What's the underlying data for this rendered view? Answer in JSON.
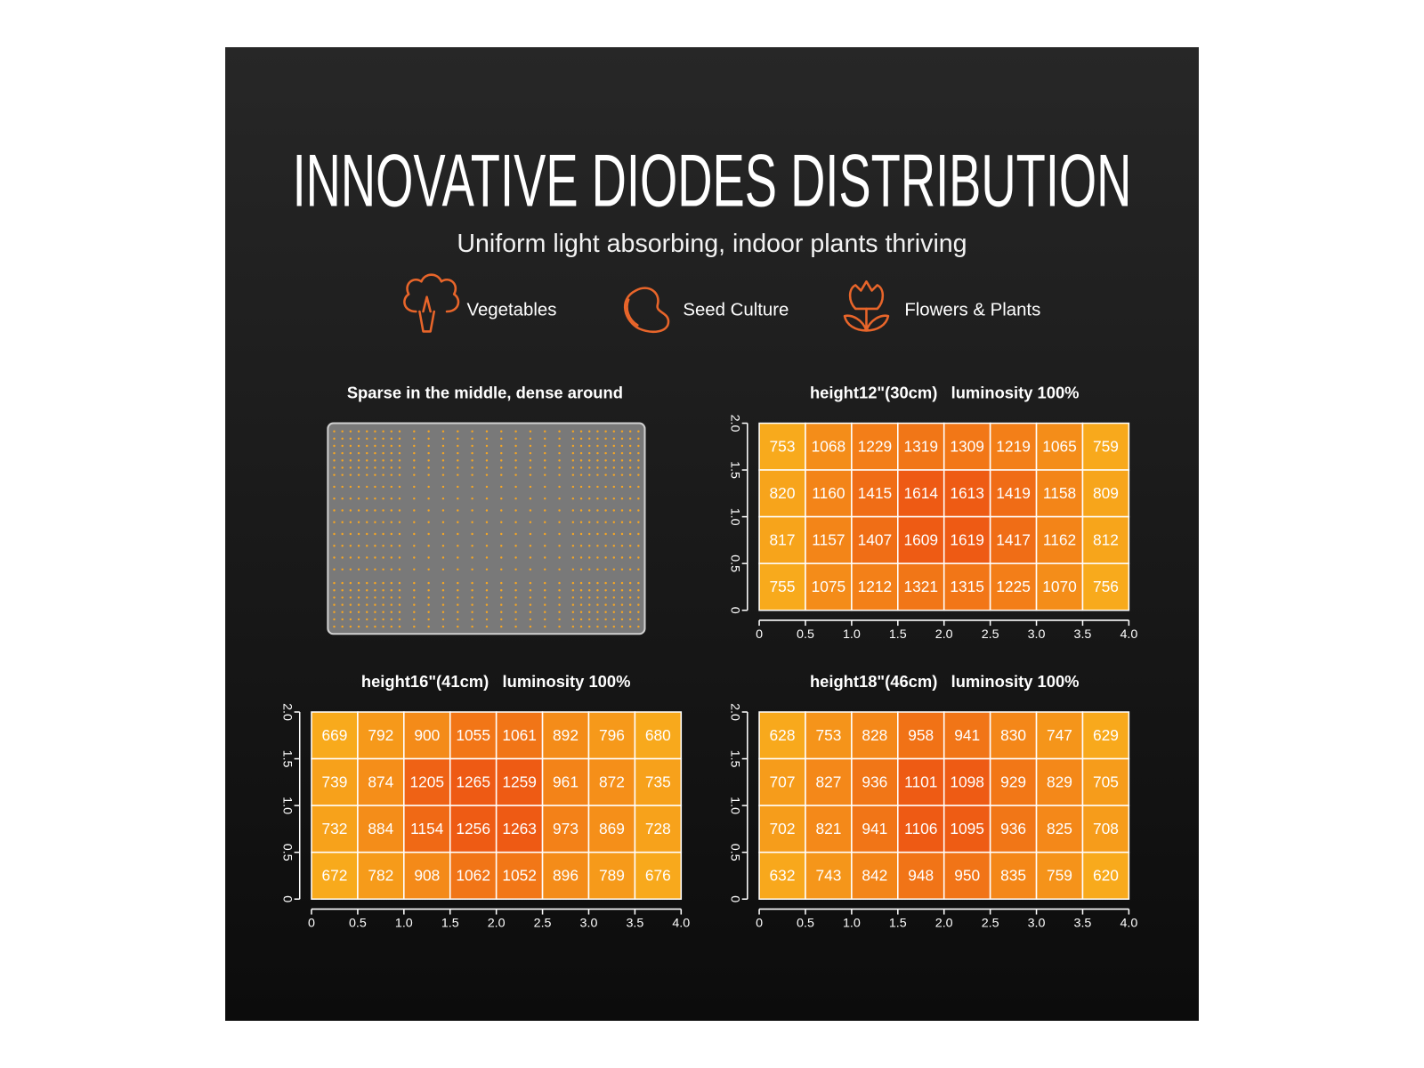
{
  "header": {
    "title": "INNOVATIVE DIODES DISTRIBUTION",
    "subtitle": "Uniform light absorbing, indoor plants thriving"
  },
  "features": [
    "Vegetables",
    "Seed Culture",
    "Flowers & Plants"
  ],
  "diode_panel": {
    "title": "Sparse in the middle, dense around"
  },
  "chart_data": [
    {
      "type": "heatmap",
      "title": "height12\"(30cm)   luminosity 100%",
      "rows": [
        [
          753,
          1068,
          1229,
          1319,
          1309,
          1219,
          1065,
          759
        ],
        [
          820,
          1160,
          1415,
          1614,
          1613,
          1419,
          1158,
          809
        ],
        [
          817,
          1157,
          1407,
          1609,
          1619,
          1417,
          1162,
          812
        ],
        [
          755,
          1075,
          1212,
          1321,
          1315,
          1225,
          1070,
          756
        ]
      ],
      "xlim": [
        0,
        4
      ],
      "ylim": [
        0,
        2
      ],
      "xticks": [
        0,
        0.5,
        {
          "value": 1,
          "label": "1.0"
        },
        1.5,
        {
          "value": 2,
          "label": "2.0"
        },
        2.5,
        {
          "value": 3,
          "label": "3.0"
        },
        3.5,
        {
          "value": 4,
          "label": "4.0"
        }
      ],
      "yticks": [
        0,
        0.5,
        {
          "value": 1,
          "label": "1.0"
        },
        1.5,
        {
          "value": 2,
          "label": "2.0"
        }
      ],
      "colors": [
        "#f8aa1c",
        "#ee5a14"
      ]
    },
    {
      "type": "heatmap",
      "title": "height16\"(41cm)   luminosity 100%",
      "rows": [
        [
          669,
          792,
          900,
          1055,
          1061,
          892,
          796,
          680
        ],
        [
          739,
          874,
          1205,
          1265,
          1259,
          961,
          872,
          735
        ],
        [
          732,
          884,
          1154,
          1256,
          1263,
          973,
          869,
          728
        ],
        [
          672,
          782,
          908,
          1062,
          1052,
          896,
          789,
          676
        ]
      ],
      "xlim": [
        0,
        4
      ],
      "ylim": [
        0,
        2
      ],
      "xticks": [
        0,
        0.5,
        {
          "value": 1,
          "label": "1.0"
        },
        1.5,
        {
          "value": 2,
          "label": "2.0"
        },
        2.5,
        {
          "value": 3,
          "label": "3.0"
        },
        3.5,
        {
          "value": 4,
          "label": "4.0"
        }
      ],
      "yticks": [
        0,
        0.5,
        {
          "value": 1,
          "label": "1.0"
        },
        1.5,
        {
          "value": 2,
          "label": "2.0"
        }
      ],
      "colors": [
        "#f8aa1c",
        "#ee5a14"
      ]
    },
    {
      "type": "heatmap",
      "title": "height18\"(46cm)   luminosity 100%",
      "rows": [
        [
          628,
          753,
          828,
          958,
          941,
          830,
          747,
          629
        ],
        [
          707,
          827,
          936,
          1101,
          1098,
          929,
          829,
          705
        ],
        [
          702,
          821,
          941,
          1106,
          1095,
          936,
          825,
          708
        ],
        [
          632,
          743,
          842,
          948,
          950,
          835,
          759,
          620
        ]
      ],
      "xlim": [
        0,
        4
      ],
      "ylim": [
        0,
        2
      ],
      "xticks": [
        0,
        0.5,
        {
          "value": 1,
          "label": "1.0"
        },
        1.5,
        {
          "value": 2,
          "label": "2.0"
        },
        2.5,
        {
          "value": 3,
          "label": "3.0"
        },
        3.5,
        {
          "value": 4,
          "label": "4.0"
        }
      ],
      "yticks": [
        0,
        0.5,
        {
          "value": 1,
          "label": "1.0"
        },
        1.5,
        {
          "value": 2,
          "label": "2.0"
        }
      ],
      "colors": [
        "#f8aa1c",
        "#ee5a14"
      ]
    }
  ]
}
